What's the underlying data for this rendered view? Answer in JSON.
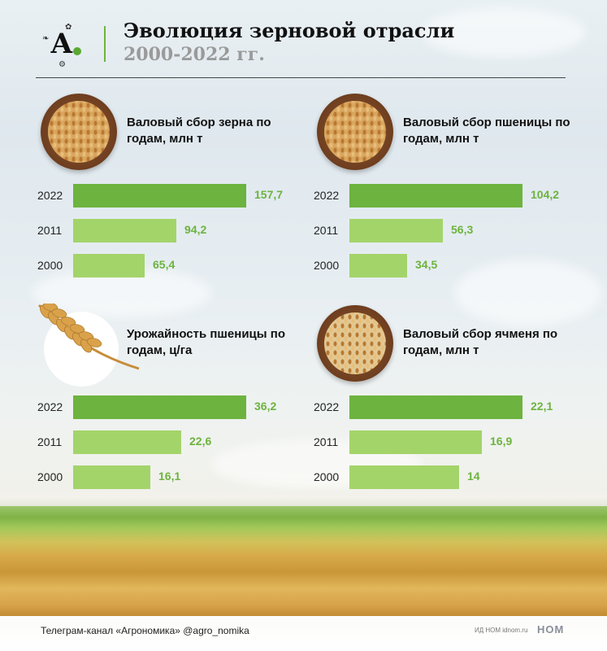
{
  "header": {
    "logo_letter": "А",
    "title_line1": "Эволюция зерновой отрасли",
    "title_line2": "2000-2022 гг."
  },
  "chart_data": [
    {
      "type": "bar",
      "title": "Валовый сбор зерна по годам, млн т",
      "categories": [
        "2022",
        "2011",
        "2000"
      ],
      "values": [
        157.7,
        94.2,
        65.4
      ],
      "labels": [
        "157,7",
        "94,2",
        "65,4"
      ]
    },
    {
      "type": "bar",
      "title": "Валовый сбор пшеницы по годам, млн т",
      "categories": [
        "2022",
        "2011",
        "2000"
      ],
      "values": [
        104.2,
        56.3,
        34.5
      ],
      "labels": [
        "104,2",
        "56,3",
        "34,5"
      ]
    },
    {
      "type": "bar",
      "title": "Урожайность пшеницы по годам, ц/га",
      "categories": [
        "2022",
        "2011",
        "2000"
      ],
      "values": [
        36.2,
        22.6,
        16.1
      ],
      "labels": [
        "36,2",
        "22,6",
        "16,1"
      ]
    },
    {
      "type": "bar",
      "title": "Валовый сбор ячменя по годам, млн т",
      "categories": [
        "2022",
        "2011",
        "2000"
      ],
      "values": [
        22.1,
        16.9,
        14
      ],
      "labels": [
        "22,1",
        "16,9",
        "14"
      ]
    }
  ],
  "colors": {
    "latest_bar": "#6db33f",
    "older_bar": "#a3d46a",
    "value_text": "#6db33f",
    "accent": "#6fb43d"
  },
  "icons": [
    "grain-bowl-icon",
    "grain-bowl-icon",
    "wheat-ear-icon",
    "barley-bowl-icon"
  ],
  "footer": {
    "channel": "Телеграм-канал «Агрономика» @agro_nomika",
    "publisher": "ИД НОМ idnom.ru",
    "brand": "НОМ"
  }
}
